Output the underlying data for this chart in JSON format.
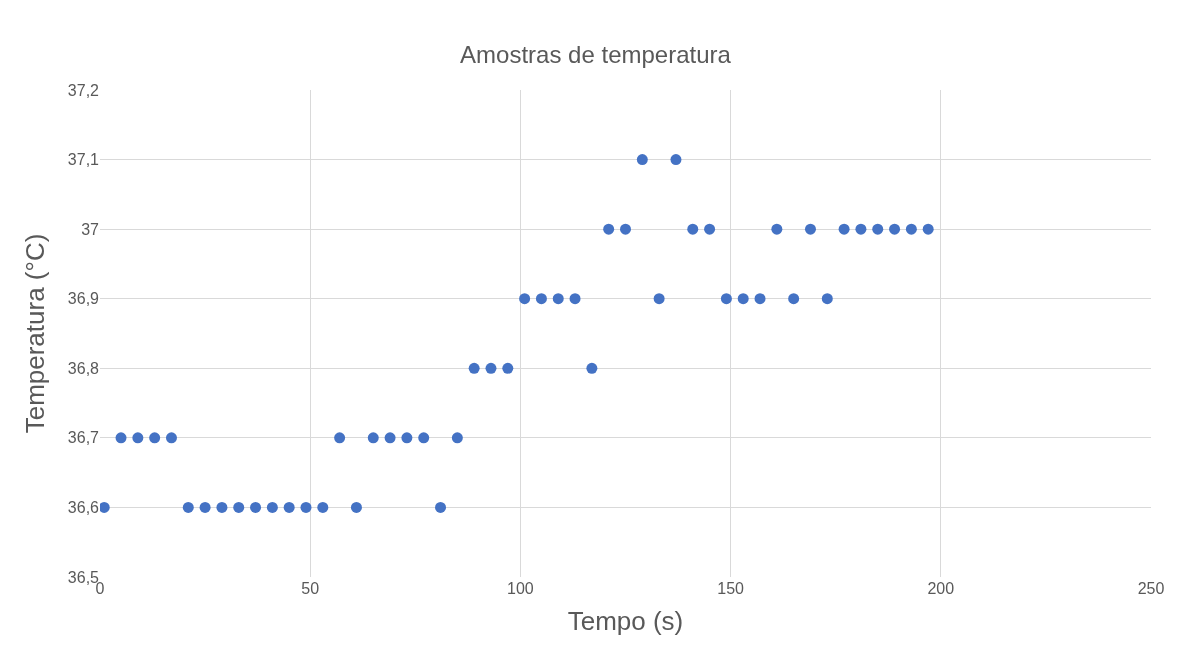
{
  "chart_data": {
    "type": "scatter",
    "title": "Amostras de temperatura",
    "xlabel": "Tempo (s)",
    "ylabel": "Temperatura (°C)",
    "x": [
      1,
      5,
      9,
      13,
      17,
      21,
      25,
      29,
      33,
      37,
      41,
      45,
      49,
      53,
      57,
      61,
      65,
      69,
      73,
      77,
      81,
      85,
      89,
      93,
      97,
      101,
      105,
      109,
      113,
      117,
      121,
      125,
      129,
      133,
      137,
      141,
      145,
      149,
      153,
      157,
      161,
      165,
      169,
      173,
      177,
      181,
      185,
      189,
      193,
      197
    ],
    "series": [
      {
        "color": "#4472c4",
        "values": [
          36.6,
          36.7,
          36.7,
          36.7,
          36.7,
          36.6,
          36.6,
          36.6,
          36.6,
          36.6,
          36.6,
          36.6,
          36.6,
          36.6,
          36.7,
          36.6,
          36.7,
          36.7,
          36.7,
          36.7,
          36.6,
          36.7,
          36.8,
          36.8,
          36.8,
          36.9,
          36.9,
          36.9,
          36.9,
          36.8,
          37,
          37,
          37.1,
          36.9,
          37.1,
          37,
          37,
          36.9,
          36.9,
          36.9,
          37,
          36.9,
          37,
          36.9,
          37,
          37,
          37,
          37,
          37,
          37
        ]
      }
    ],
    "xlim": [
      0,
      250
    ],
    "xticks": [
      0,
      50,
      100,
      150,
      200,
      250
    ],
    "ylim": [
      36.5,
      37.2
    ],
    "yticks": [
      {
        "value": 36.5,
        "label": "36,5"
      },
      {
        "value": 36.6,
        "label": "36,6"
      },
      {
        "value": 36.7,
        "label": "36,7"
      },
      {
        "value": 36.8,
        "label": "36,8"
      },
      {
        "value": 36.9,
        "label": "36,9"
      },
      {
        "value": 37,
        "label": "37"
      },
      {
        "value": 37.1,
        "label": "37,1"
      },
      {
        "value": 37.2,
        "label": "37,2"
      }
    ],
    "grid": true,
    "marker": "circle"
  }
}
